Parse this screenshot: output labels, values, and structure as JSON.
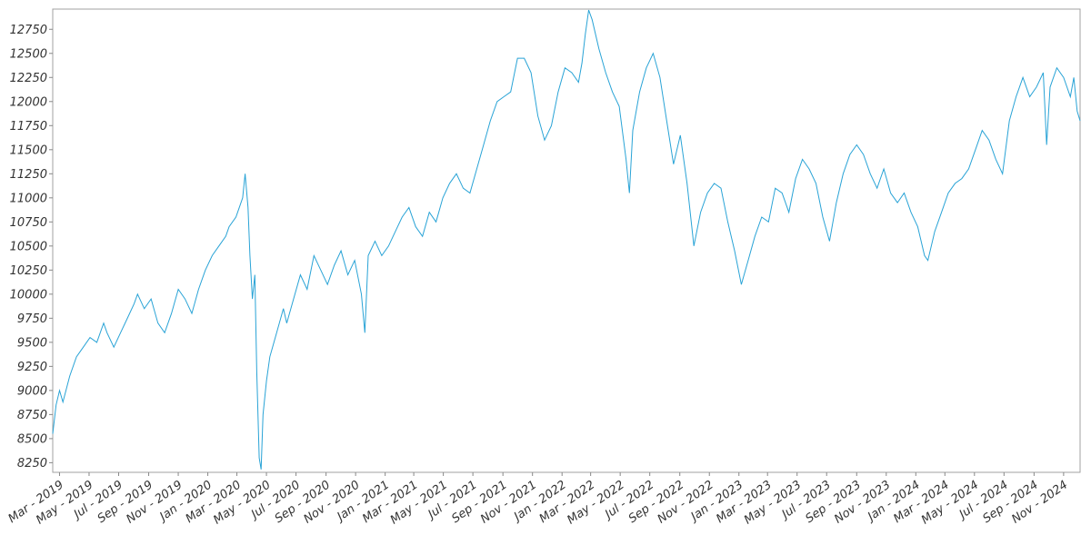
{
  "chart_data": {
    "type": "line",
    "title": "",
    "xlabel": "",
    "ylabel": "",
    "ylim": [
      8150,
      12960
    ],
    "xlim": [
      "2019-02-15",
      "2024-12-05"
    ],
    "grid": false,
    "legend": "none",
    "line_color": "#29a3d6",
    "y_ticks": [
      8250,
      8500,
      8750,
      9000,
      9250,
      9500,
      9750,
      10000,
      10250,
      10500,
      10750,
      11000,
      11250,
      11500,
      11750,
      12000,
      12250,
      12500,
      12750
    ],
    "x_ticks": [
      {
        "label": "Mar - 2019",
        "date": "2019-03-01"
      },
      {
        "label": "May - 2019",
        "date": "2019-05-01"
      },
      {
        "label": "Jul - 2019",
        "date": "2019-07-01"
      },
      {
        "label": "Sep - 2019",
        "date": "2019-09-01"
      },
      {
        "label": "Nov - 2019",
        "date": "2019-11-01"
      },
      {
        "label": "Jan - 2020",
        "date": "2020-01-01"
      },
      {
        "label": "Mar - 2020",
        "date": "2020-03-01"
      },
      {
        "label": "May - 2020",
        "date": "2020-05-01"
      },
      {
        "label": "Jul - 2020",
        "date": "2020-07-01"
      },
      {
        "label": "Sep - 2020",
        "date": "2020-09-01"
      },
      {
        "label": "Nov - 2020",
        "date": "2020-11-01"
      },
      {
        "label": "Jan - 2021",
        "date": "2021-01-01"
      },
      {
        "label": "Mar - 2021",
        "date": "2021-03-01"
      },
      {
        "label": "May - 2021",
        "date": "2021-05-01"
      },
      {
        "label": "Jul - 2021",
        "date": "2021-07-01"
      },
      {
        "label": "Sep - 2021",
        "date": "2021-09-01"
      },
      {
        "label": "Nov - 2021",
        "date": "2021-11-01"
      },
      {
        "label": "Jan - 2022",
        "date": "2022-01-01"
      },
      {
        "label": "Mar - 2022",
        "date": "2022-03-01"
      },
      {
        "label": "May - 2022",
        "date": "2022-05-01"
      },
      {
        "label": "Jul - 2022",
        "date": "2022-07-01"
      },
      {
        "label": "Sep - 2022",
        "date": "2022-09-01"
      },
      {
        "label": "Nov - 2022",
        "date": "2022-11-01"
      },
      {
        "label": "Jan - 2023",
        "date": "2023-01-01"
      },
      {
        "label": "Mar - 2023",
        "date": "2023-03-01"
      },
      {
        "label": "May - 2023",
        "date": "2023-05-01"
      },
      {
        "label": "Jul - 2023",
        "date": "2023-07-01"
      },
      {
        "label": "Sep - 2023",
        "date": "2023-09-01"
      },
      {
        "label": "Nov - 2023",
        "date": "2023-11-01"
      },
      {
        "label": "Jan - 2024",
        "date": "2024-01-01"
      },
      {
        "label": "Mar - 2024",
        "date": "2024-03-01"
      },
      {
        "label": "May - 2024",
        "date": "2024-05-01"
      },
      {
        "label": "Jul - 2024",
        "date": "2024-07-01"
      },
      {
        "label": "Sep - 2024",
        "date": "2024-09-01"
      },
      {
        "label": "Nov - 2024",
        "date": "2024-11-01"
      }
    ],
    "series": [
      {
        "points": [
          [
            "2019-02-15",
            8550
          ],
          [
            "2019-02-22",
            8850
          ],
          [
            "2019-03-01",
            9000
          ],
          [
            "2019-03-08",
            8880
          ],
          [
            "2019-03-22",
            9150
          ],
          [
            "2019-04-05",
            9350
          ],
          [
            "2019-04-19",
            9450
          ],
          [
            "2019-05-03",
            9550
          ],
          [
            "2019-05-17",
            9500
          ],
          [
            "2019-05-31",
            9700
          ],
          [
            "2019-06-07",
            9600
          ],
          [
            "2019-06-21",
            9450
          ],
          [
            "2019-07-05",
            9600
          ],
          [
            "2019-07-19",
            9750
          ],
          [
            "2019-08-02",
            9900
          ],
          [
            "2019-08-09",
            10000
          ],
          [
            "2019-08-23",
            9850
          ],
          [
            "2019-09-06",
            9950
          ],
          [
            "2019-09-20",
            9700
          ],
          [
            "2019-10-04",
            9600
          ],
          [
            "2019-10-18",
            9800
          ],
          [
            "2019-11-01",
            10050
          ],
          [
            "2019-11-15",
            9950
          ],
          [
            "2019-11-29",
            9800
          ],
          [
            "2019-12-13",
            10050
          ],
          [
            "2019-12-27",
            10250
          ],
          [
            "2020-01-10",
            10400
          ],
          [
            "2020-01-24",
            10500
          ],
          [
            "2020-02-07",
            10600
          ],
          [
            "2020-02-14",
            10700
          ],
          [
            "2020-02-28",
            10800
          ],
          [
            "2020-03-06",
            10900
          ],
          [
            "2020-03-13",
            11000
          ],
          [
            "2020-03-18",
            11250
          ],
          [
            "2020-03-24",
            10900
          ],
          [
            "2020-03-28",
            10400
          ],
          [
            "2020-04-02",
            9950
          ],
          [
            "2020-04-07",
            10200
          ],
          [
            "2020-04-11",
            9200
          ],
          [
            "2020-04-16",
            8300
          ],
          [
            "2020-04-20",
            8180
          ],
          [
            "2020-04-24",
            8750
          ],
          [
            "2020-05-01",
            9100
          ],
          [
            "2020-05-08",
            9350
          ],
          [
            "2020-05-22",
            9600
          ],
          [
            "2020-06-05",
            9850
          ],
          [
            "2020-06-12",
            9700
          ],
          [
            "2020-06-26",
            9950
          ],
          [
            "2020-07-10",
            10200
          ],
          [
            "2020-07-24",
            10050
          ],
          [
            "2020-08-07",
            10400
          ],
          [
            "2020-08-21",
            10250
          ],
          [
            "2020-09-04",
            10100
          ],
          [
            "2020-09-18",
            10300
          ],
          [
            "2020-10-02",
            10450
          ],
          [
            "2020-10-16",
            10200
          ],
          [
            "2020-10-30",
            10350
          ],
          [
            "2020-11-13",
            10000
          ],
          [
            "2020-11-20",
            9600
          ],
          [
            "2020-11-27",
            10400
          ],
          [
            "2020-12-11",
            10550
          ],
          [
            "2020-12-25",
            10400
          ],
          [
            "2021-01-08",
            10500
          ],
          [
            "2021-01-22",
            10650
          ],
          [
            "2021-02-05",
            10800
          ],
          [
            "2021-02-19",
            10900
          ],
          [
            "2021-03-05",
            10700
          ],
          [
            "2021-03-19",
            10600
          ],
          [
            "2021-04-02",
            10850
          ],
          [
            "2021-04-16",
            10750
          ],
          [
            "2021-04-30",
            11000
          ],
          [
            "2021-05-14",
            11150
          ],
          [
            "2021-05-28",
            11250
          ],
          [
            "2021-06-11",
            11100
          ],
          [
            "2021-06-25",
            11050
          ],
          [
            "2021-07-09",
            11300
          ],
          [
            "2021-07-23",
            11550
          ],
          [
            "2021-08-06",
            11800
          ],
          [
            "2021-08-20",
            12000
          ],
          [
            "2021-09-03",
            12050
          ],
          [
            "2021-09-17",
            12100
          ],
          [
            "2021-10-01",
            12450
          ],
          [
            "2021-10-15",
            12450
          ],
          [
            "2021-10-29",
            12300
          ],
          [
            "2021-11-12",
            11850
          ],
          [
            "2021-11-26",
            11600
          ],
          [
            "2021-12-10",
            11750
          ],
          [
            "2021-12-24",
            12100
          ],
          [
            "2022-01-07",
            12350
          ],
          [
            "2022-01-21",
            12300
          ],
          [
            "2022-02-04",
            12200
          ],
          [
            "2022-02-11",
            12400
          ],
          [
            "2022-02-18",
            12700
          ],
          [
            "2022-02-25",
            12950
          ],
          [
            "2022-03-04",
            12850
          ],
          [
            "2022-03-18",
            12550
          ],
          [
            "2022-04-01",
            12300
          ],
          [
            "2022-04-15",
            12100
          ],
          [
            "2022-04-29",
            11950
          ],
          [
            "2022-05-13",
            11400
          ],
          [
            "2022-05-20",
            11050
          ],
          [
            "2022-05-27",
            11700
          ],
          [
            "2022-06-10",
            12100
          ],
          [
            "2022-06-24",
            12350
          ],
          [
            "2022-07-08",
            12500
          ],
          [
            "2022-07-22",
            12250
          ],
          [
            "2022-08-05",
            11800
          ],
          [
            "2022-08-19",
            11350
          ],
          [
            "2022-09-02",
            11650
          ],
          [
            "2022-09-16",
            11150
          ],
          [
            "2022-09-30",
            10500
          ],
          [
            "2022-10-14",
            10850
          ],
          [
            "2022-10-28",
            11050
          ],
          [
            "2022-11-11",
            11150
          ],
          [
            "2022-11-25",
            11100
          ],
          [
            "2022-12-09",
            10750
          ],
          [
            "2022-12-23",
            10450
          ],
          [
            "2023-01-06",
            10100
          ],
          [
            "2023-01-20",
            10350
          ],
          [
            "2023-02-03",
            10600
          ],
          [
            "2023-02-17",
            10800
          ],
          [
            "2023-03-03",
            10750
          ],
          [
            "2023-03-17",
            11100
          ],
          [
            "2023-03-31",
            11050
          ],
          [
            "2023-04-14",
            10850
          ],
          [
            "2023-04-28",
            11200
          ],
          [
            "2023-05-12",
            11400
          ],
          [
            "2023-05-26",
            11300
          ],
          [
            "2023-06-09",
            11150
          ],
          [
            "2023-06-23",
            10800
          ],
          [
            "2023-07-07",
            10550
          ],
          [
            "2023-07-21",
            10950
          ],
          [
            "2023-08-04",
            11250
          ],
          [
            "2023-08-18",
            11450
          ],
          [
            "2023-09-01",
            11550
          ],
          [
            "2023-09-15",
            11450
          ],
          [
            "2023-09-29",
            11250
          ],
          [
            "2023-10-13",
            11100
          ],
          [
            "2023-10-27",
            11300
          ],
          [
            "2023-11-10",
            11050
          ],
          [
            "2023-11-24",
            10950
          ],
          [
            "2023-12-08",
            11050
          ],
          [
            "2023-12-22",
            10850
          ],
          [
            "2024-01-05",
            10700
          ],
          [
            "2024-01-19",
            10400
          ],
          [
            "2024-01-26",
            10350
          ],
          [
            "2024-02-09",
            10650
          ],
          [
            "2024-02-23",
            10850
          ],
          [
            "2024-03-08",
            11050
          ],
          [
            "2024-03-22",
            11150
          ],
          [
            "2024-04-05",
            11200
          ],
          [
            "2024-04-19",
            11300
          ],
          [
            "2024-05-03",
            11500
          ],
          [
            "2024-05-17",
            11700
          ],
          [
            "2024-05-31",
            11600
          ],
          [
            "2024-06-14",
            11400
          ],
          [
            "2024-06-28",
            11250
          ],
          [
            "2024-07-12",
            11800
          ],
          [
            "2024-07-26",
            12050
          ],
          [
            "2024-08-09",
            12250
          ],
          [
            "2024-08-23",
            12050
          ],
          [
            "2024-09-06",
            12150
          ],
          [
            "2024-09-20",
            12300
          ],
          [
            "2024-09-27",
            11550
          ],
          [
            "2024-10-04",
            12150
          ],
          [
            "2024-10-18",
            12350
          ],
          [
            "2024-11-01",
            12250
          ],
          [
            "2024-11-15",
            12050
          ],
          [
            "2024-11-22",
            12250
          ],
          [
            "2024-11-29",
            11900
          ],
          [
            "2024-12-05",
            11800
          ]
        ]
      }
    ]
  }
}
